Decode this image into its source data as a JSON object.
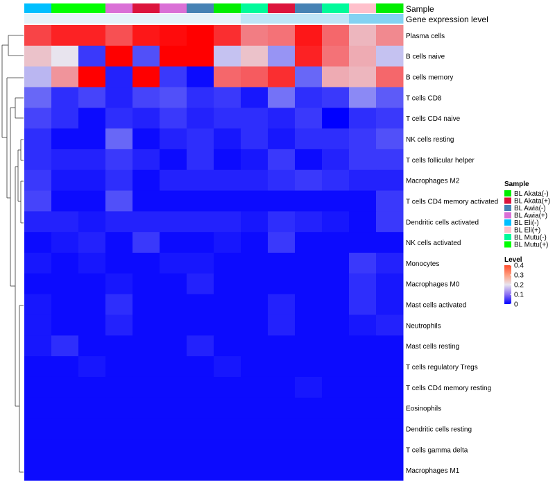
{
  "chart_data": {
    "type": "heatmap",
    "annotation_labels": [
      "Sample",
      "Gene expression level"
    ],
    "samples": [
      "BL Eli(-)",
      "BL Mutu(+)",
      "BL Mutu(+)",
      "BL Awia(+)",
      "BL Akata(+)",
      "BL Awia(+)",
      "BL Awia(-)",
      "BL Akata(-)",
      "BL Mutu(-)",
      "BL Akata(+)",
      "BL Awia(-)",
      "BL Mutu(-)",
      "BL Eli(+)",
      "BL Akata(-)"
    ],
    "expression_annotation": [
      0.05,
      0.05,
      0.05,
      0.05,
      0.05,
      0.05,
      0.05,
      0.05,
      0.3,
      0.3,
      0.3,
      0.3,
      0.7,
      0.7
    ],
    "rows": [
      "Plasma cells",
      "B cells naive",
      "B cells memory",
      "T cells CD8",
      "T cells CD4 naive",
      "NK cells resting",
      "T cells follicular helper",
      "Macrophages M2",
      "T cells CD4 memory activated",
      "Dendritic cells activated",
      "NK cells activated",
      "Monocytes",
      "Macrophages M0",
      "Mast cells activated",
      "Neutrophils",
      "Mast cells resting",
      "T cells regulatory  Tregs",
      "T cells CD4 memory resting",
      "Eosinophils",
      "Dendritic cells resting",
      "T cells gamma delta",
      "Macrophages M1"
    ],
    "values": [
      [
        0.34,
        0.37,
        0.37,
        0.33,
        0.38,
        0.39,
        0.4,
        0.36,
        0.29,
        0.3,
        0.38,
        0.31,
        0.24,
        0.28
      ],
      [
        0.23,
        0.2,
        0.05,
        0.4,
        0.07,
        0.41,
        0.41,
        0.17,
        0.23,
        0.13,
        0.37,
        0.3,
        0.25,
        0.17
      ],
      [
        0.16,
        0.27,
        0.4,
        0.03,
        0.4,
        0.05,
        0.01,
        0.31,
        0.32,
        0.36,
        0.09,
        0.25,
        0.24,
        0.31
      ],
      [
        0.09,
        0.04,
        0.06,
        0.03,
        0.06,
        0.07,
        0.04,
        0.05,
        0.02,
        0.1,
        0.04,
        0.05,
        0.12,
        0.08
      ],
      [
        0.06,
        0.04,
        0.01,
        0.04,
        0.03,
        0.05,
        0.03,
        0.04,
        0.04,
        0.03,
        0.05,
        0.0,
        0.04,
        0.05
      ],
      [
        0.04,
        0.01,
        0.01,
        0.09,
        0.01,
        0.03,
        0.04,
        0.02,
        0.04,
        0.02,
        0.04,
        0.04,
        0.05,
        0.07
      ],
      [
        0.04,
        0.03,
        0.03,
        0.05,
        0.03,
        0.01,
        0.04,
        0.01,
        0.02,
        0.05,
        0.01,
        0.03,
        0.05,
        0.05
      ],
      [
        0.05,
        0.02,
        0.02,
        0.04,
        0.01,
        0.03,
        0.03,
        0.03,
        0.03,
        0.04,
        0.05,
        0.04,
        0.03,
        0.03
      ],
      [
        0.06,
        0.01,
        0.01,
        0.07,
        0.01,
        0.01,
        0.01,
        0.01,
        0.01,
        0.01,
        0.01,
        0.01,
        0.01,
        0.05
      ],
      [
        0.03,
        0.03,
        0.02,
        0.03,
        0.03,
        0.03,
        0.03,
        0.03,
        0.02,
        0.04,
        0.03,
        0.02,
        0.01,
        0.05
      ],
      [
        0.01,
        0.02,
        0.03,
        0.01,
        0.05,
        0.01,
        0.01,
        0.02,
        0.01,
        0.05,
        0.01,
        0.01,
        0.01,
        0.01
      ],
      [
        0.02,
        0.01,
        0.02,
        0.01,
        0.01,
        0.02,
        0.02,
        0.01,
        0.01,
        0.01,
        0.01,
        0.01,
        0.05,
        0.03
      ],
      [
        0.01,
        0.01,
        0.01,
        0.02,
        0.01,
        0.01,
        0.03,
        0.01,
        0.01,
        0.01,
        0.01,
        0.01,
        0.04,
        0.02
      ],
      [
        0.02,
        0.01,
        0.01,
        0.04,
        0.01,
        0.01,
        0.01,
        0.01,
        0.01,
        0.03,
        0.01,
        0.01,
        0.04,
        0.02
      ],
      [
        0.02,
        0.01,
        0.01,
        0.03,
        0.01,
        0.01,
        0.01,
        0.01,
        0.01,
        0.03,
        0.01,
        0.01,
        0.02,
        0.03
      ],
      [
        0.02,
        0.04,
        0.01,
        0.01,
        0.01,
        0.01,
        0.03,
        0.01,
        0.01,
        0.01,
        0.01,
        0.01,
        0.01,
        0.01
      ],
      [
        0.01,
        0.01,
        0.02,
        0.01,
        0.01,
        0.01,
        0.01,
        0.02,
        0.01,
        0.01,
        0.01,
        0.01,
        0.01,
        0.01
      ],
      [
        0.01,
        0.01,
        0.01,
        0.01,
        0.01,
        0.01,
        0.01,
        0.01,
        0.01,
        0.01,
        0.02,
        0.01,
        0.01,
        0.01
      ],
      [
        0.01,
        0.01,
        0.01,
        0.01,
        0.01,
        0.01,
        0.01,
        0.01,
        0.01,
        0.01,
        0.01,
        0.01,
        0.01,
        0.01
      ],
      [
        0.01,
        0.01,
        0.01,
        0.01,
        0.01,
        0.01,
        0.01,
        0.01,
        0.01,
        0.01,
        0.01,
        0.01,
        0.01,
        0.01
      ],
      [
        0.01,
        0.01,
        0.01,
        0.01,
        0.01,
        0.01,
        0.01,
        0.01,
        0.01,
        0.01,
        0.01,
        0.01,
        0.01,
        0.01
      ],
      [
        0.01,
        0.01,
        0.01,
        0.01,
        0.01,
        0.01,
        0.01,
        0.01,
        0.01,
        0.01,
        0.01,
        0.01,
        0.01,
        0.01
      ]
    ],
    "color_scale": {
      "min": 0,
      "max": 0.4,
      "stops": [
        {
          "value": 0,
          "color": "#0000ff"
        },
        {
          "value": 0.2,
          "color": "#e8e4ee"
        },
        {
          "value": 0.4,
          "color": "#ff0000"
        }
      ]
    },
    "expression_colors": {
      "low": "#ecf4fa",
      "high": "#56c3ef"
    },
    "legend": {
      "sample_title": "Sample",
      "sample_items": [
        {
          "label": "BL Akata(-)",
          "color": "#00ee00"
        },
        {
          "label": "BL Akata(+)",
          "color": "#dc143c"
        },
        {
          "label": "BL Awia(-)",
          "color": "#4682b4"
        },
        {
          "label": "BL Awia(+)",
          "color": "#da70d6"
        },
        {
          "label": "BL Eli(-)",
          "color": "#00bfff"
        },
        {
          "label": "BL Eli(+)",
          "color": "#ffc0cb"
        },
        {
          "label": "BL Mutu(-)",
          "color": "#00fa9a"
        },
        {
          "label": "BL Mutu(+)",
          "color": "#00ff00"
        }
      ],
      "level_title": "Level",
      "level_ticks": [
        "0.4",
        "0.3",
        "0.2",
        "0.1",
        "0"
      ],
      "level_tick_values": [
        0.4,
        0.3,
        0.2,
        0.1,
        0
      ]
    }
  }
}
